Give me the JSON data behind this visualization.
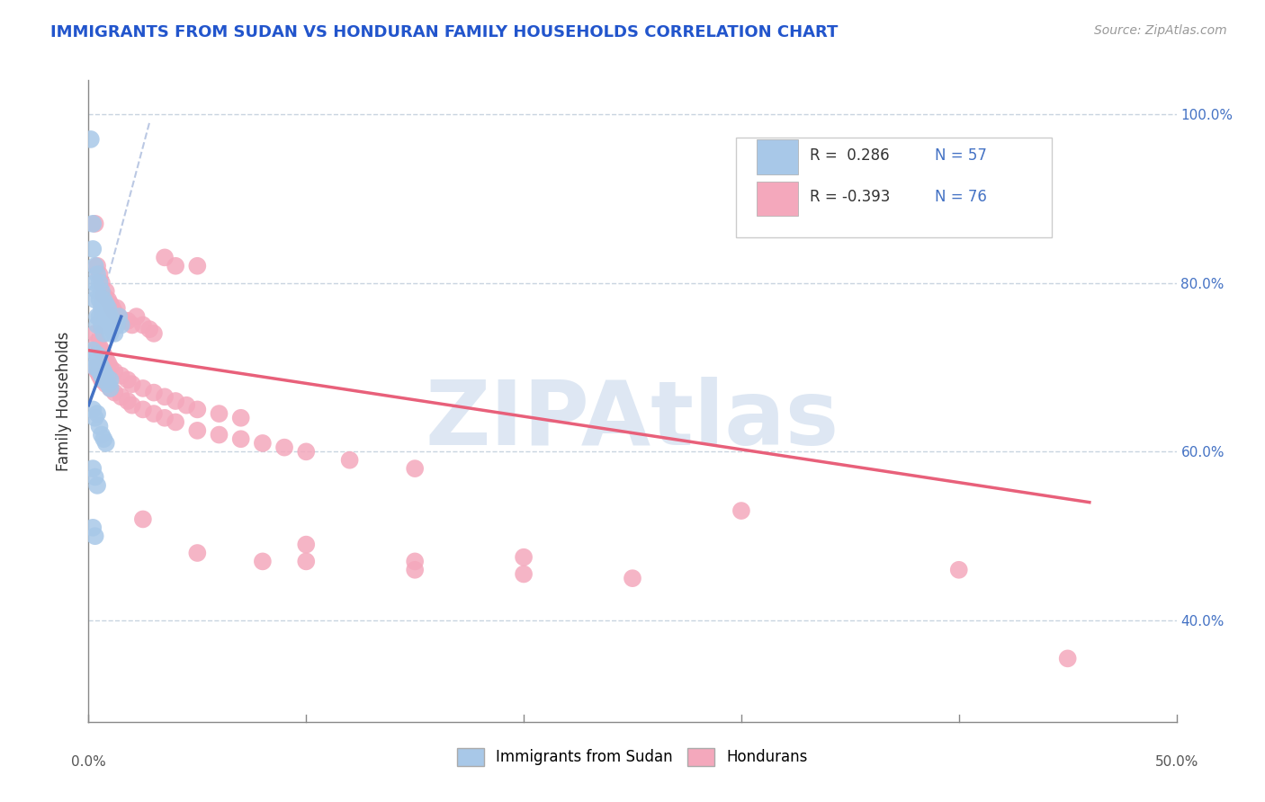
{
  "title": "IMMIGRANTS FROM SUDAN VS HONDURAN FAMILY HOUSEHOLDS CORRELATION CHART",
  "source_text": "Source: ZipAtlas.com",
  "ylabel": "Family Households",
  "xlim": [
    0.0,
    0.5
  ],
  "ylim": [
    0.28,
    1.04
  ],
  "xtick_vals": [
    0.0,
    0.1,
    0.2,
    0.3,
    0.4,
    0.5
  ],
  "ytick_vals": [
    0.4,
    0.6,
    0.8,
    1.0
  ],
  "ytick_labels": [
    "40.0%",
    "60.0%",
    "80.0%",
    "100.0%"
  ],
  "blue_color": "#a8c8e8",
  "pink_color": "#f4a8bc",
  "blue_line_color": "#4472c4",
  "pink_line_color": "#e8607a",
  "title_color": "#2255cc",
  "watermark_color": "#c8d8ec",
  "grid_color": "#c8d4e0",
  "blue_scatter": [
    [
      0.001,
      0.97
    ],
    [
      0.002,
      0.87
    ],
    [
      0.002,
      0.84
    ],
    [
      0.003,
      0.82
    ],
    [
      0.003,
      0.8
    ],
    [
      0.003,
      0.78
    ],
    [
      0.004,
      0.81
    ],
    [
      0.004,
      0.79
    ],
    [
      0.004,
      0.76
    ],
    [
      0.004,
      0.75
    ],
    [
      0.005,
      0.8
    ],
    [
      0.005,
      0.78
    ],
    [
      0.005,
      0.76
    ],
    [
      0.006,
      0.79
    ],
    [
      0.006,
      0.77
    ],
    [
      0.006,
      0.75
    ],
    [
      0.007,
      0.78
    ],
    [
      0.007,
      0.76
    ],
    [
      0.007,
      0.74
    ],
    [
      0.008,
      0.775
    ],
    [
      0.008,
      0.755
    ],
    [
      0.009,
      0.77
    ],
    [
      0.009,
      0.75
    ],
    [
      0.01,
      0.76
    ],
    [
      0.01,
      0.74
    ],
    [
      0.011,
      0.755
    ],
    [
      0.012,
      0.74
    ],
    [
      0.013,
      0.75
    ],
    [
      0.014,
      0.76
    ],
    [
      0.015,
      0.75
    ],
    [
      0.002,
      0.72
    ],
    [
      0.003,
      0.71
    ],
    [
      0.003,
      0.7
    ],
    [
      0.004,
      0.715
    ],
    [
      0.004,
      0.7
    ],
    [
      0.005,
      0.705
    ],
    [
      0.005,
      0.695
    ],
    [
      0.006,
      0.7
    ],
    [
      0.006,
      0.69
    ],
    [
      0.007,
      0.695
    ],
    [
      0.007,
      0.685
    ],
    [
      0.008,
      0.69
    ],
    [
      0.009,
      0.68
    ],
    [
      0.01,
      0.685
    ],
    [
      0.01,
      0.675
    ],
    [
      0.002,
      0.65
    ],
    [
      0.003,
      0.64
    ],
    [
      0.004,
      0.645
    ],
    [
      0.005,
      0.63
    ],
    [
      0.006,
      0.62
    ],
    [
      0.007,
      0.615
    ],
    [
      0.008,
      0.61
    ],
    [
      0.002,
      0.58
    ],
    [
      0.003,
      0.57
    ],
    [
      0.004,
      0.56
    ],
    [
      0.002,
      0.51
    ],
    [
      0.003,
      0.5
    ]
  ],
  "pink_scatter": [
    [
      0.003,
      0.87
    ],
    [
      0.004,
      0.82
    ],
    [
      0.005,
      0.81
    ],
    [
      0.006,
      0.8
    ],
    [
      0.007,
      0.785
    ],
    [
      0.008,
      0.79
    ],
    [
      0.009,
      0.78
    ],
    [
      0.01,
      0.775
    ],
    [
      0.011,
      0.77
    ],
    [
      0.012,
      0.765
    ],
    [
      0.013,
      0.77
    ],
    [
      0.014,
      0.76
    ],
    [
      0.016,
      0.755
    ],
    [
      0.018,
      0.755
    ],
    [
      0.02,
      0.75
    ],
    [
      0.022,
      0.76
    ],
    [
      0.025,
      0.75
    ],
    [
      0.028,
      0.745
    ],
    [
      0.03,
      0.74
    ],
    [
      0.035,
      0.83
    ],
    [
      0.04,
      0.82
    ],
    [
      0.05,
      0.82
    ],
    [
      0.003,
      0.74
    ],
    [
      0.004,
      0.73
    ],
    [
      0.005,
      0.725
    ],
    [
      0.006,
      0.72
    ],
    [
      0.007,
      0.715
    ],
    [
      0.008,
      0.71
    ],
    [
      0.009,
      0.705
    ],
    [
      0.01,
      0.7
    ],
    [
      0.012,
      0.695
    ],
    [
      0.015,
      0.69
    ],
    [
      0.018,
      0.685
    ],
    [
      0.02,
      0.68
    ],
    [
      0.025,
      0.675
    ],
    [
      0.03,
      0.67
    ],
    [
      0.035,
      0.665
    ],
    [
      0.04,
      0.66
    ],
    [
      0.045,
      0.655
    ],
    [
      0.05,
      0.65
    ],
    [
      0.06,
      0.645
    ],
    [
      0.07,
      0.64
    ],
    [
      0.003,
      0.7
    ],
    [
      0.004,
      0.695
    ],
    [
      0.005,
      0.69
    ],
    [
      0.006,
      0.685
    ],
    [
      0.008,
      0.68
    ],
    [
      0.01,
      0.675
    ],
    [
      0.012,
      0.67
    ],
    [
      0.015,
      0.665
    ],
    [
      0.018,
      0.66
    ],
    [
      0.02,
      0.655
    ],
    [
      0.025,
      0.65
    ],
    [
      0.03,
      0.645
    ],
    [
      0.035,
      0.64
    ],
    [
      0.04,
      0.635
    ],
    [
      0.05,
      0.625
    ],
    [
      0.06,
      0.62
    ],
    [
      0.07,
      0.615
    ],
    [
      0.08,
      0.61
    ],
    [
      0.09,
      0.605
    ],
    [
      0.1,
      0.6
    ],
    [
      0.12,
      0.59
    ],
    [
      0.15,
      0.58
    ],
    [
      0.025,
      0.52
    ],
    [
      0.05,
      0.48
    ],
    [
      0.08,
      0.47
    ],
    [
      0.1,
      0.47
    ],
    [
      0.15,
      0.46
    ],
    [
      0.2,
      0.455
    ],
    [
      0.25,
      0.45
    ],
    [
      0.4,
      0.46
    ],
    [
      0.45,
      0.355
    ],
    [
      0.1,
      0.49
    ],
    [
      0.15,
      0.47
    ],
    [
      0.2,
      0.475
    ],
    [
      0.3,
      0.53
    ]
  ],
  "blue_trendline_x": [
    0.0,
    0.015
  ],
  "blue_trendline_y": [
    0.655,
    0.76
  ],
  "pink_trendline_x": [
    0.0,
    0.46
  ],
  "pink_trendline_y": [
    0.72,
    0.54
  ],
  "dashed_line_x": [
    0.0,
    0.028
  ],
  "dashed_line_y": [
    0.72,
    0.99
  ]
}
